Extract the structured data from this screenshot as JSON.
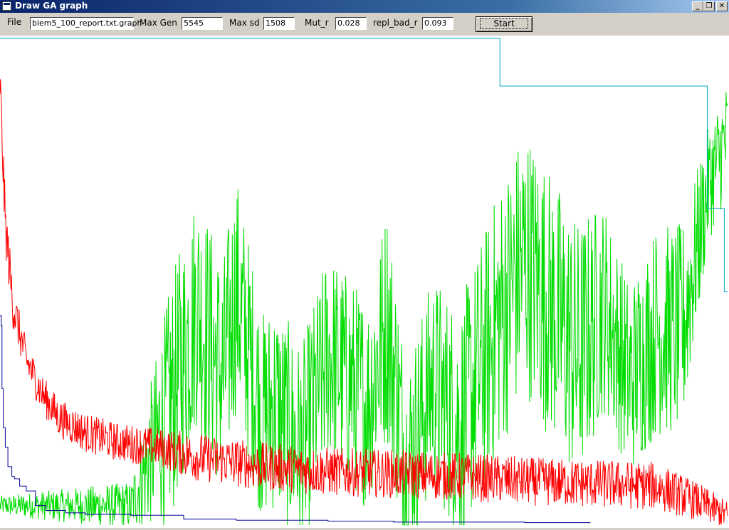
{
  "window": {
    "title": "Draw GA graph",
    "controls": {
      "minimize": "_",
      "restore": "❐",
      "close": "✕"
    }
  },
  "menu": {
    "file": "File"
  },
  "form": {
    "file_value": "blem5_100_report.txt.graph",
    "max_gen_label": "Max Gen",
    "max_gen_value": "5545",
    "max_sd_label": "Max sd",
    "max_sd_value": "1508",
    "mut_r_label": "Mut_r",
    "mut_r_value": "0.028",
    "repl_bad_r_label": "repl_bad_r",
    "repl_bad_r_value": "0.093",
    "start_label": "Start"
  },
  "chart_data": {
    "type": "line",
    "title": "",
    "xlabel": "",
    "ylabel": "",
    "xlim": [
      0,
      5545
    ],
    "grid": false,
    "legend": "none",
    "series": [
      {
        "color": "#ff0000",
        "kind": "noisy",
        "x": [
          0,
          40,
          100,
          200,
          320,
          450,
          650,
          900,
          1200,
          1500,
          2000,
          2500,
          3000,
          3500,
          4000,
          4500,
          5000,
          5300,
          5545
        ],
        "y": [
          0.91,
          0.62,
          0.45,
          0.34,
          0.27,
          0.22,
          0.19,
          0.17,
          0.16,
          0.14,
          0.12,
          0.11,
          0.105,
          0.1,
          0.09,
          0.085,
          0.08,
          0.05,
          0.02
        ],
        "noise": [
          0.06,
          0.06,
          0.05,
          0.04,
          0.04,
          0.04,
          0.04,
          0.04,
          0.04,
          0.05,
          0.05,
          0.05,
          0.05,
          0.05,
          0.05,
          0.05,
          0.05,
          0.04,
          0.03
        ]
      },
      {
        "color": "#00dd00",
        "kind": "noisy",
        "x": [
          0,
          1000,
          1300,
          1500,
          1700,
          1800,
          2000,
          2100,
          2300,
          2500,
          2800,
          2950,
          3100,
          3300,
          3500,
          3800,
          4000,
          4200,
          4400,
          4600,
          4800,
          5000,
          5200,
          5400,
          5545
        ],
        "y": [
          0.04,
          0.04,
          0.25,
          0.45,
          0.3,
          0.48,
          0.22,
          0.25,
          0.15,
          0.35,
          0.25,
          0.42,
          0.12,
          0.3,
          0.2,
          0.42,
          0.55,
          0.45,
          0.35,
          0.45,
          0.3,
          0.4,
          0.4,
          0.7,
          0.8
        ],
        "noise": [
          0.02,
          0.05,
          0.25,
          0.25,
          0.25,
          0.25,
          0.22,
          0.22,
          0.22,
          0.22,
          0.22,
          0.25,
          0.22,
          0.22,
          0.25,
          0.28,
          0.28,
          0.28,
          0.28,
          0.22,
          0.2,
          0.22,
          0.22,
          0.12,
          0.12
        ]
      },
      {
        "color": "#000099",
        "kind": "step",
        "x": [
          0,
          10,
          15,
          25,
          40,
          60,
          90,
          110,
          150,
          200,
          270,
          350,
          500,
          650,
          1000,
          1400,
          1800,
          2500,
          3000,
          4000,
          4500
        ],
        "y": [
          0.43,
          0.41,
          0.28,
          0.2,
          0.16,
          0.12,
          0.1,
          0.095,
          0.08,
          0.07,
          0.04,
          0.03,
          0.025,
          0.022,
          0.02,
          0.012,
          0.01,
          0.008,
          0.006,
          0.005,
          0.005
        ]
      },
      {
        "color": "#00a8c8",
        "kind": "step",
        "x": [
          0,
          3800,
          3810,
          5380,
          5390,
          5520,
          5545
        ],
        "y": [
          1.0,
          1.0,
          0.902,
          0.902,
          0.65,
          0.48,
          0.48
        ]
      }
    ]
  }
}
